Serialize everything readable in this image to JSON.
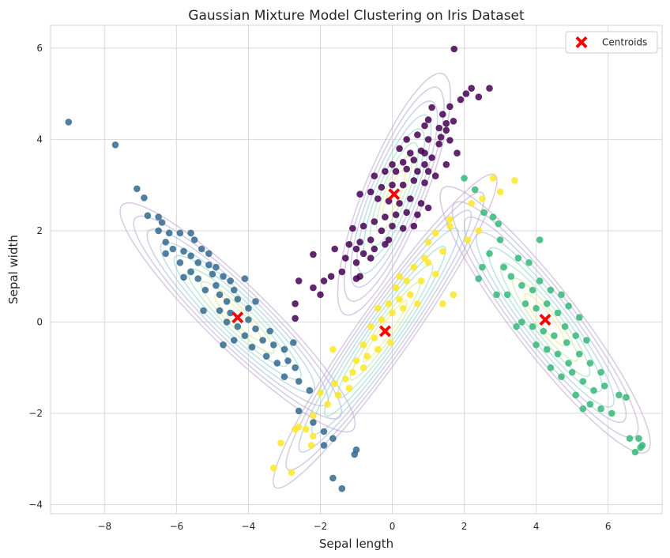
{
  "chart_data": {
    "type": "scatter",
    "title": "Gaussian Mixture Model Clustering on Iris Dataset",
    "xlabel": "Sepal length",
    "ylabel": "Sepal width",
    "xlim": [
      -9.5,
      7.5
    ],
    "ylim": [
      -4.2,
      6.5
    ],
    "xticks": [
      -8,
      -6,
      -4,
      -2,
      0,
      2,
      4,
      6
    ],
    "yticks": [
      -4,
      -2,
      0,
      2,
      4,
      6
    ],
    "xtick_labels": [
      "−8",
      "−6",
      "−4",
      "−2",
      "0",
      "2",
      "4",
      "6"
    ],
    "ytick_labels": [
      "−4",
      "−2",
      "0",
      "2",
      "4",
      "6"
    ],
    "grid": true,
    "legend_position": "top-right",
    "legend": [
      {
        "label": "Centroids",
        "marker": "X",
        "color": "#ff0000"
      }
    ],
    "clusters": [
      {
        "color": "#440154",
        "center": [
          0.05,
          2.8
        ],
        "spread": [
          1.1,
          0.3
        ],
        "angle_deg": 62,
        "points": [
          [
            1.72,
            5.98
          ],
          [
            2.7,
            5.12
          ],
          [
            2.2,
            5.12
          ],
          [
            2.05,
            5.0
          ],
          [
            2.4,
            4.93
          ],
          [
            1.9,
            4.87
          ],
          [
            1.6,
            4.72
          ],
          [
            1.4,
            4.55
          ],
          [
            1.1,
            4.7
          ],
          [
            1.0,
            4.43
          ],
          [
            1.5,
            4.35
          ],
          [
            1.7,
            4.4
          ],
          [
            1.5,
            4.2
          ],
          [
            1.3,
            4.25
          ],
          [
            0.9,
            4.3
          ],
          [
            1.6,
            3.98
          ],
          [
            1.3,
            3.9
          ],
          [
            1.0,
            4.0
          ],
          [
            0.7,
            4.1
          ],
          [
            0.4,
            4.0
          ],
          [
            0.2,
            3.8
          ],
          [
            0.5,
            3.7
          ],
          [
            0.8,
            3.75
          ],
          [
            1.1,
            3.6
          ],
          [
            0.9,
            3.45
          ],
          [
            0.6,
            3.55
          ],
          [
            0.3,
            3.5
          ],
          [
            0.0,
            3.45
          ],
          [
            -0.2,
            3.3
          ],
          [
            0.1,
            3.3
          ],
          [
            0.4,
            3.35
          ],
          [
            0.7,
            3.3
          ],
          [
            1.0,
            3.3
          ],
          [
            1.2,
            3.2
          ],
          [
            0.9,
            3.05
          ],
          [
            0.6,
            3.1
          ],
          [
            0.3,
            3.0
          ],
          [
            0.0,
            3.0
          ],
          [
            -0.3,
            2.95
          ],
          [
            -0.6,
            2.85
          ],
          [
            -0.9,
            2.8
          ],
          [
            -0.4,
            2.7
          ],
          [
            -0.1,
            2.65
          ],
          [
            0.2,
            2.6
          ],
          [
            0.5,
            2.7
          ],
          [
            0.8,
            2.6
          ],
          [
            1.0,
            2.5
          ],
          [
            0.7,
            2.35
          ],
          [
            0.4,
            2.4
          ],
          [
            0.1,
            2.35
          ],
          [
            -0.2,
            2.3
          ],
          [
            -0.5,
            2.2
          ],
          [
            -0.8,
            2.1
          ],
          [
            -1.1,
            2.05
          ],
          [
            -0.3,
            2.0
          ],
          [
            0.0,
            2.1
          ],
          [
            0.3,
            2.05
          ],
          [
            0.6,
            2.1
          ],
          [
            -0.6,
            1.8
          ],
          [
            -0.9,
            1.75
          ],
          [
            -1.2,
            1.7
          ],
          [
            -1.6,
            1.6
          ],
          [
            -1.3,
            1.4
          ],
          [
            -0.8,
            1.5
          ],
          [
            -0.5,
            1.6
          ],
          [
            -0.2,
            1.7
          ],
          [
            -1.0,
            1.3
          ],
          [
            -1.4,
            1.1
          ],
          [
            -1.7,
            1.0
          ],
          [
            -1.9,
            0.9
          ],
          [
            -2.2,
            0.75
          ],
          [
            -2.6,
            0.9
          ],
          [
            -2.0,
            0.6
          ],
          [
            -1.0,
            0.95
          ],
          [
            -0.9,
            1.0
          ],
          [
            -0.6,
            1.4
          ],
          [
            -0.1,
            1.8
          ],
          [
            1.5,
            3.45
          ],
          [
            1.8,
            3.7
          ],
          [
            -0.5,
            3.2
          ],
          [
            0.9,
            3.7
          ],
          [
            1.35,
            4.05
          ],
          [
            -2.7,
            0.4
          ],
          [
            -2.7,
            0.08
          ],
          [
            -2.2,
            1.48
          ],
          [
            -1.0,
            1.6
          ]
        ]
      },
      {
        "color": "#31688e",
        "center": [
          -4.3,
          0.1
        ],
        "spread": [
          1.5,
          0.28
        ],
        "angle_deg": -37,
        "points": [
          [
            -9.0,
            4.38
          ],
          [
            -7.7,
            3.88
          ],
          [
            -7.1,
            2.92
          ],
          [
            -6.9,
            2.72
          ],
          [
            -6.8,
            2.33
          ],
          [
            -6.5,
            2.3
          ],
          [
            -6.4,
            2.18
          ],
          [
            -6.5,
            2.0
          ],
          [
            -6.2,
            1.95
          ],
          [
            -5.9,
            1.95
          ],
          [
            -5.6,
            1.95
          ],
          [
            -5.5,
            1.8
          ],
          [
            -5.3,
            1.6
          ],
          [
            -5.1,
            1.5
          ],
          [
            -6.3,
            1.75
          ],
          [
            -6.1,
            1.6
          ],
          [
            -5.8,
            1.55
          ],
          [
            -5.6,
            1.45
          ],
          [
            -5.9,
            1.3
          ],
          [
            -6.3,
            1.5
          ],
          [
            -5.4,
            1.3
          ],
          [
            -5.1,
            1.25
          ],
          [
            -4.9,
            1.2
          ],
          [
            -5.6,
            1.1
          ],
          [
            -5.8,
            0.98
          ],
          [
            -5.4,
            0.95
          ],
          [
            -5.0,
            1.05
          ],
          [
            -4.7,
            1.0
          ],
          [
            -4.5,
            0.9
          ],
          [
            -4.9,
            0.8
          ],
          [
            -5.2,
            0.7
          ],
          [
            -4.8,
            0.6
          ],
          [
            -4.4,
            0.7
          ],
          [
            -4.1,
            0.95
          ],
          [
            -4.6,
            0.45
          ],
          [
            -4.3,
            0.5
          ],
          [
            -4.0,
            0.3
          ],
          [
            -4.5,
            0.2
          ],
          [
            -4.8,
            0.25
          ],
          [
            -4.6,
            0.0
          ],
          [
            -4.3,
            -0.1
          ],
          [
            -4.0,
            0.05
          ],
          [
            -3.8,
            -0.15
          ],
          [
            -4.1,
            -0.3
          ],
          [
            -4.4,
            -0.4
          ],
          [
            -3.9,
            -0.55
          ],
          [
            -3.6,
            -0.4
          ],
          [
            -3.3,
            -0.5
          ],
          [
            -3.0,
            -0.6
          ],
          [
            -3.5,
            -0.75
          ],
          [
            -3.2,
            -0.9
          ],
          [
            -2.9,
            -0.85
          ],
          [
            -2.7,
            -1.0
          ],
          [
            -3.0,
            -1.2
          ],
          [
            -2.6,
            -1.3
          ],
          [
            -2.3,
            -1.5
          ],
          [
            -2.6,
            -1.95
          ],
          [
            -2.2,
            -2.2
          ],
          [
            -1.9,
            -2.4
          ],
          [
            -1.65,
            -2.55
          ],
          [
            -1.9,
            -2.7
          ],
          [
            -1.0,
            -2.8
          ],
          [
            -1.05,
            -2.9
          ],
          [
            -1.65,
            -3.42
          ],
          [
            -1.4,
            -3.65
          ],
          [
            -3.8,
            0.45
          ],
          [
            -5.25,
            0.25
          ],
          [
            -4.7,
            -0.5
          ],
          [
            -3.4,
            -0.2
          ],
          [
            -2.75,
            -0.45
          ]
        ]
      },
      {
        "color": "#35b779",
        "center": [
          4.25,
          0.05
        ],
        "spread": [
          1.5,
          0.3
        ],
        "angle_deg": -45,
        "points": [
          [
            2.0,
            3.15
          ],
          [
            2.3,
            2.9
          ],
          [
            2.55,
            2.4
          ],
          [
            2.8,
            2.3
          ],
          [
            2.95,
            2.15
          ],
          [
            3.0,
            1.8
          ],
          [
            2.7,
            1.5
          ],
          [
            2.5,
            1.2
          ],
          [
            2.4,
            0.95
          ],
          [
            3.1,
            1.2
          ],
          [
            3.3,
            1.0
          ],
          [
            3.5,
            1.4
          ],
          [
            3.8,
            1.3
          ],
          [
            4.1,
            1.8
          ],
          [
            3.6,
            0.8
          ],
          [
            3.9,
            0.7
          ],
          [
            4.1,
            0.9
          ],
          [
            4.4,
            0.7
          ],
          [
            4.7,
            0.6
          ],
          [
            3.7,
            0.4
          ],
          [
            4.0,
            0.3
          ],
          [
            4.3,
            0.4
          ],
          [
            4.6,
            0.2
          ],
          [
            4.9,
            0.35
          ],
          [
            5.2,
            0.1
          ],
          [
            3.6,
            0.0
          ],
          [
            3.9,
            -0.1
          ],
          [
            4.2,
            -0.2
          ],
          [
            4.5,
            -0.3
          ],
          [
            4.8,
            -0.1
          ],
          [
            5.1,
            -0.3
          ],
          [
            5.4,
            -0.4
          ],
          [
            4.0,
            -0.5
          ],
          [
            4.3,
            -0.6
          ],
          [
            4.6,
            -0.7
          ],
          [
            4.9,
            -0.9
          ],
          [
            5.2,
            -0.7
          ],
          [
            5.5,
            -0.9
          ],
          [
            5.8,
            -1.1
          ],
          [
            4.4,
            -1.0
          ],
          [
            4.7,
            -1.2
          ],
          [
            5.0,
            -1.1
          ],
          [
            5.3,
            -1.3
          ],
          [
            5.6,
            -1.5
          ],
          [
            5.9,
            -1.4
          ],
          [
            5.1,
            -1.6
          ],
          [
            5.5,
            -1.8
          ],
          [
            5.8,
            -1.9
          ],
          [
            6.1,
            -2.0
          ],
          [
            5.3,
            -1.9
          ],
          [
            6.3,
            -1.6
          ],
          [
            6.5,
            -1.65
          ],
          [
            6.6,
            -2.55
          ],
          [
            6.75,
            -2.85
          ],
          [
            6.9,
            -2.75
          ],
          [
            6.95,
            -2.7
          ],
          [
            6.85,
            -2.55
          ],
          [
            3.2,
            0.6
          ],
          [
            2.9,
            0.6
          ],
          [
            3.45,
            -0.1
          ],
          [
            4.85,
            -0.45
          ]
        ]
      },
      {
        "color": "#fde725",
        "center": [
          -0.2,
          -0.2
        ],
        "spread": [
          1.7,
          0.25
        ],
        "angle_deg": 48,
        "points": [
          [
            3.4,
            3.1
          ],
          [
            2.8,
            3.15
          ],
          [
            3.0,
            2.85
          ],
          [
            2.5,
            2.7
          ],
          [
            2.2,
            2.6
          ],
          [
            1.6,
            2.25
          ],
          [
            1.6,
            2.1
          ],
          [
            1.2,
            1.95
          ],
          [
            1.0,
            1.75
          ],
          [
            1.4,
            1.55
          ],
          [
            0.9,
            1.4
          ],
          [
            0.6,
            1.2
          ],
          [
            1.2,
            1.05
          ],
          [
            0.8,
            0.9
          ],
          [
            0.4,
            0.9
          ],
          [
            0.1,
            0.75
          ],
          [
            0.5,
            0.6
          ],
          [
            0.2,
            0.5
          ],
          [
            -0.1,
            0.4
          ],
          [
            -0.4,
            0.3
          ],
          [
            0.0,
            0.2
          ],
          [
            -0.3,
            0.05
          ],
          [
            -0.6,
            -0.1
          ],
          [
            -0.2,
            -0.2
          ],
          [
            -0.5,
            -0.35
          ],
          [
            -0.8,
            -0.5
          ],
          [
            -0.4,
            -0.6
          ],
          [
            -0.7,
            -0.75
          ],
          [
            -1.0,
            -0.85
          ],
          [
            -0.8,
            -1.0
          ],
          [
            -1.1,
            -1.1
          ],
          [
            -1.3,
            -1.25
          ],
          [
            -1.6,
            -1.35
          ],
          [
            -1.2,
            -1.45
          ],
          [
            -1.5,
            -1.6
          ],
          [
            -1.8,
            -1.8
          ],
          [
            -2.0,
            -1.55
          ],
          [
            -1.65,
            -0.6
          ],
          [
            -2.2,
            -2.05
          ],
          [
            -2.4,
            -2.35
          ],
          [
            -2.2,
            -2.5
          ],
          [
            -2.6,
            -2.3
          ],
          [
            -2.7,
            -2.35
          ],
          [
            -2.25,
            -2.7
          ],
          [
            -3.1,
            -2.65
          ],
          [
            -3.3,
            -3.2
          ],
          [
            -2.8,
            -3.3
          ],
          [
            0.3,
            0.3
          ],
          [
            0.7,
            0.4
          ],
          [
            -0.05,
            -0.45
          ],
          [
            1.4,
            0.4
          ],
          [
            1.7,
            0.6
          ],
          [
            2.1,
            1.8
          ],
          [
            2.4,
            2.0
          ],
          [
            0.2,
            1.0
          ],
          [
            1.0,
            1.3
          ]
        ]
      }
    ],
    "centroids": [
      [
        0.05,
        2.8
      ],
      [
        -4.3,
        0.1
      ],
      [
        4.25,
        0.05
      ],
      [
        -0.2,
        -0.2
      ]
    ],
    "centroid_color": "#ff0000"
  }
}
